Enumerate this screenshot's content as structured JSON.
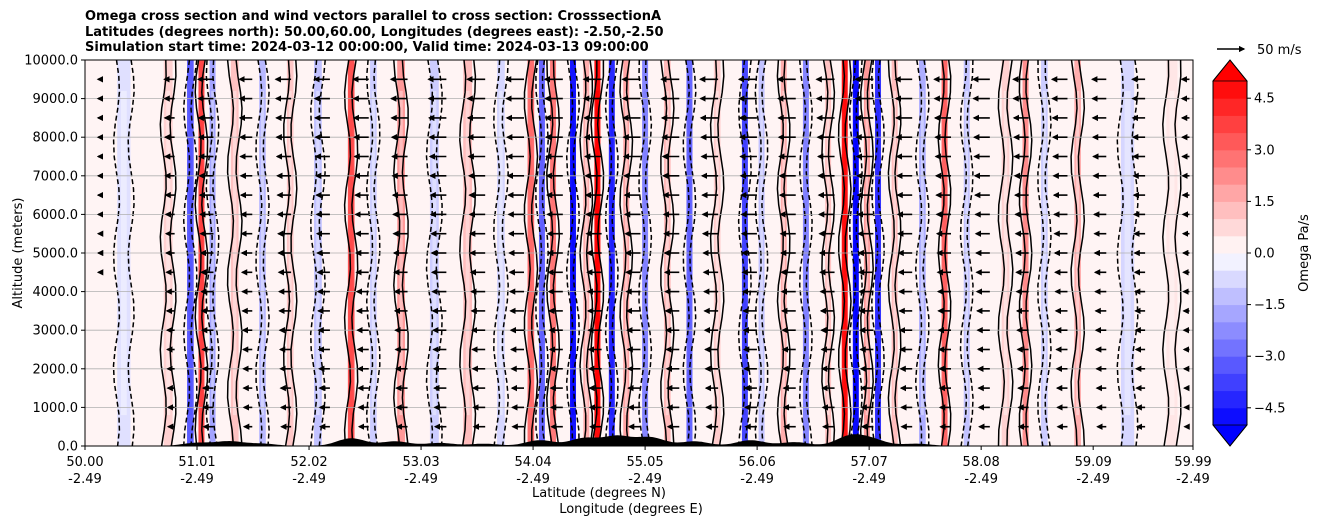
{
  "chart_data": {
    "type": "heatmap",
    "title_lines": [
      "Omega cross section and wind vectors parallel to cross section: CrosssectionA",
      "Latitudes (degrees north): 50.00,60.00, Longitudes (degrees east): -2.50,-2.50",
      "Simulation start time: 2024-03-12 00:00:00, Valid time: 2024-03-13 09:00:00"
    ],
    "ylabel": "Altitude (meters)",
    "xlabel_lat": "Latitude (degrees N)",
    "xlabel_lon": "Longitude (degrees E)",
    "xlim": [
      50.0,
      59.99
    ],
    "ylim": [
      0,
      10000
    ],
    "x_ticks": [
      {
        "lat": "50.00",
        "lon": "-2.49",
        "value": 50.0
      },
      {
        "lat": "51.01",
        "lon": "-2.49",
        "value": 51.01
      },
      {
        "lat": "52.02",
        "lon": "-2.49",
        "value": 52.02
      },
      {
        "lat": "53.03",
        "lon": "-2.49",
        "value": 53.03
      },
      {
        "lat": "54.04",
        "lon": "-2.49",
        "value": 54.04
      },
      {
        "lat": "55.05",
        "lon": "-2.49",
        "value": 55.05
      },
      {
        "lat": "56.06",
        "lon": "-2.49",
        "value": 56.06
      },
      {
        "lat": "57.07",
        "lon": "-2.49",
        "value": 57.07
      },
      {
        "lat": "58.08",
        "lon": "-2.49",
        "value": 58.08
      },
      {
        "lat": "59.09",
        "lon": "-2.49",
        "value": 59.09
      },
      {
        "lat": "59.99",
        "lon": "-2.49",
        "value": 59.99
      }
    ],
    "y_ticks": [
      {
        "label": "0.0",
        "value": 0
      },
      {
        "label": "1000.0",
        "value": 1000
      },
      {
        "label": "2000.0",
        "value": 2000
      },
      {
        "label": "3000.0",
        "value": 3000
      },
      {
        "label": "4000.0",
        "value": 4000
      },
      {
        "label": "5000.0",
        "value": 5000
      },
      {
        "label": "6000.0",
        "value": 6000
      },
      {
        "label": "7000.0",
        "value": 7000
      },
      {
        "label": "8000.0",
        "value": 8000
      },
      {
        "label": "9000.0",
        "value": 9000
      },
      {
        "label": "10000.0",
        "value": 10000
      }
    ],
    "colorbar": {
      "label": "Omega Pa/s",
      "vmin": -5.0,
      "vmax": 5.0,
      "ticks": [
        {
          "label": "4.5",
          "value": 4.5
        },
        {
          "label": "3.0",
          "value": 3.0
        },
        {
          "label": "1.5",
          "value": 1.5
        },
        {
          "label": "0.0",
          "value": 0.0
        },
        {
          "label": "−1.5",
          "value": -1.5
        },
        {
          "label": "−3.0",
          "value": -3.0
        },
        {
          "label": "−4.5",
          "value": -4.5
        }
      ]
    },
    "quiver_key": {
      "label": "50 m/s",
      "value": 50
    },
    "omega_bands": [
      {
        "lat": 50.35,
        "value": -0.6,
        "width": 0.12
      },
      {
        "lat": 50.75,
        "value": 0.9,
        "width": 0.08
      },
      {
        "lat": 50.95,
        "value": -3.2,
        "width": 0.06
      },
      {
        "lat": 51.05,
        "value": 3.6,
        "width": 0.05
      },
      {
        "lat": 51.15,
        "value": -1.8,
        "width": 0.05
      },
      {
        "lat": 51.35,
        "value": 1.2,
        "width": 0.07
      },
      {
        "lat": 51.6,
        "value": -1.4,
        "width": 0.06
      },
      {
        "lat": 51.85,
        "value": 1.1,
        "width": 0.06
      },
      {
        "lat": 52.1,
        "value": -1.2,
        "width": 0.07
      },
      {
        "lat": 52.4,
        "value": 3.4,
        "width": 0.06
      },
      {
        "lat": 52.6,
        "value": -1.0,
        "width": 0.06
      },
      {
        "lat": 52.85,
        "value": 2.0,
        "width": 0.07
      },
      {
        "lat": 53.15,
        "value": -1.0,
        "width": 0.08
      },
      {
        "lat": 53.45,
        "value": 1.3,
        "width": 0.08
      },
      {
        "lat": 53.75,
        "value": -0.8,
        "width": 0.07
      },
      {
        "lat": 54.02,
        "value": 2.8,
        "width": 0.06
      },
      {
        "lat": 54.12,
        "value": -3.0,
        "width": 0.04
      },
      {
        "lat": 54.22,
        "value": 2.6,
        "width": 0.05
      },
      {
        "lat": 54.4,
        "value": -4.6,
        "width": 0.05
      },
      {
        "lat": 54.52,
        "value": 1.6,
        "width": 0.04
      },
      {
        "lat": 54.62,
        "value": 4.8,
        "width": 0.05
      },
      {
        "lat": 54.75,
        "value": -4.2,
        "width": 0.04
      },
      {
        "lat": 54.88,
        "value": 1.8,
        "width": 0.05
      },
      {
        "lat": 55.05,
        "value": -2.4,
        "width": 0.05
      },
      {
        "lat": 55.25,
        "value": 1.4,
        "width": 0.06
      },
      {
        "lat": 55.45,
        "value": -3.0,
        "width": 0.05
      },
      {
        "lat": 55.7,
        "value": 1.0,
        "width": 0.06
      },
      {
        "lat": 55.95,
        "value": -3.6,
        "width": 0.04
      },
      {
        "lat": 56.1,
        "value": -1.2,
        "width": 0.05
      },
      {
        "lat": 56.3,
        "value": 1.6,
        "width": 0.05
      },
      {
        "lat": 56.5,
        "value": -2.4,
        "width": 0.05
      },
      {
        "lat": 56.7,
        "value": 1.2,
        "width": 0.05
      },
      {
        "lat": 56.85,
        "value": 4.6,
        "width": 0.04
      },
      {
        "lat": 56.95,
        "value": -4.8,
        "width": 0.04
      },
      {
        "lat": 57.05,
        "value": 2.0,
        "width": 0.04
      },
      {
        "lat": 57.15,
        "value": -4.0,
        "width": 0.04
      },
      {
        "lat": 57.3,
        "value": 1.3,
        "width": 0.05
      },
      {
        "lat": 57.55,
        "value": -1.6,
        "width": 0.06
      },
      {
        "lat": 57.75,
        "value": 3.0,
        "width": 0.04
      },
      {
        "lat": 57.95,
        "value": -1.2,
        "width": 0.05
      },
      {
        "lat": 58.3,
        "value": 0.9,
        "width": 0.07
      },
      {
        "lat": 58.48,
        "value": 2.2,
        "width": 0.05
      },
      {
        "lat": 58.65,
        "value": -1.0,
        "width": 0.06
      },
      {
        "lat": 58.95,
        "value": 1.6,
        "width": 0.06
      },
      {
        "lat": 59.4,
        "value": -0.8,
        "width": 0.12
      },
      {
        "lat": 59.8,
        "value": 0.5,
        "width": 0.1
      }
    ],
    "wind_columns": [
      {
        "lat": 50.02,
        "scale": 0.05
      },
      {
        "lat": 50.7,
        "scale": 0.4
      },
      {
        "lat": 51.05,
        "scale": 0.6
      },
      {
        "lat": 51.4,
        "scale": 0.5
      },
      {
        "lat": 51.75,
        "scale": 0.6
      },
      {
        "lat": 52.1,
        "scale": 0.6
      },
      {
        "lat": 52.45,
        "scale": 0.6
      },
      {
        "lat": 52.8,
        "scale": 0.65
      },
      {
        "lat": 53.15,
        "scale": 0.7
      },
      {
        "lat": 53.5,
        "scale": 0.7
      },
      {
        "lat": 53.85,
        "scale": 0.7
      },
      {
        "lat": 54.2,
        "scale": 0.7
      },
      {
        "lat": 54.55,
        "scale": 0.7
      },
      {
        "lat": 54.9,
        "scale": 0.7
      },
      {
        "lat": 55.25,
        "scale": 0.7
      },
      {
        "lat": 55.6,
        "scale": 0.7
      },
      {
        "lat": 55.95,
        "scale": 0.7
      },
      {
        "lat": 56.3,
        "scale": 0.7
      },
      {
        "lat": 56.65,
        "scale": 0.7
      },
      {
        "lat": 57.0,
        "scale": 0.7
      },
      {
        "lat": 57.35,
        "scale": 0.65
      },
      {
        "lat": 57.7,
        "scale": 0.65
      },
      {
        "lat": 58.05,
        "scale": 0.65
      },
      {
        "lat": 58.4,
        "scale": 0.6
      },
      {
        "lat": 58.75,
        "scale": 0.6
      },
      {
        "lat": 59.1,
        "scale": 0.55
      },
      {
        "lat": 59.45,
        "scale": 0.5
      },
      {
        "lat": 59.85,
        "scale": 0.3
      }
    ],
    "wind_levels": [
      9500,
      9000,
      8500,
      8000,
      7500,
      7000,
      6500,
      6000,
      5500,
      5000,
      4500,
      4000,
      3500,
      3000,
      2500,
      2000,
      1500,
      1000,
      500
    ]
  }
}
